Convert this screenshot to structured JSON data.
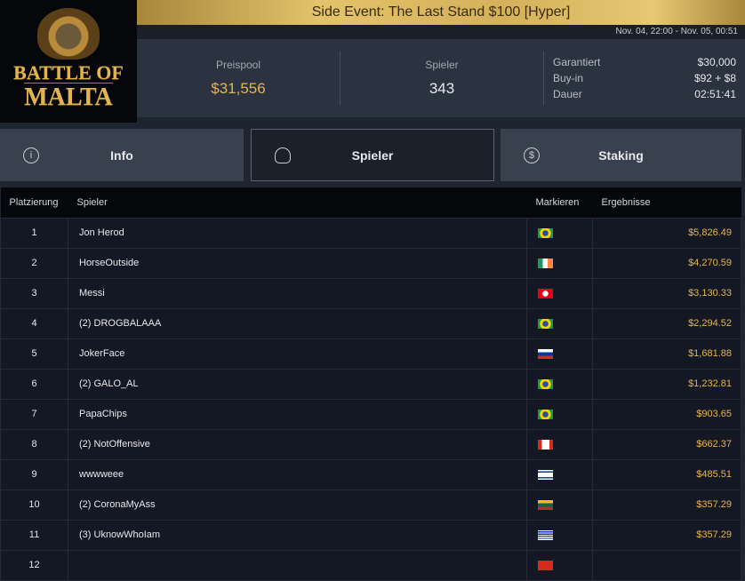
{
  "logo": {
    "text": "BATTLE OF MALTA"
  },
  "event": {
    "title": "Side Event: The Last Stand $100 [Hyper]",
    "dates": "Nov. 04, 22:00 - Nov. 05, 00:51"
  },
  "stats": {
    "prizepool_label": "Preispool",
    "prizepool": "$31,556",
    "players_label": "Spieler",
    "players": "343",
    "details": [
      {
        "k": "Garantiert",
        "v": "$30,000"
      },
      {
        "k": "Buy-in",
        "v": "$92 + $8"
      },
      {
        "k": "Dauer",
        "v": "02:51:41"
      }
    ]
  },
  "tabs": [
    {
      "label": "Info",
      "icon": "info-icon"
    },
    {
      "label": "Spieler",
      "icon": "user-icon",
      "active": true
    },
    {
      "label": "Staking",
      "icon": "dollar-icon"
    }
  ],
  "table": {
    "headers": [
      "Platzierung",
      "Spieler",
      "Markieren",
      "Ergebnisse"
    ],
    "rows": [
      {
        "rank": "1",
        "name": "Jon Herod",
        "flag": "brazil",
        "result": "$5,826.49"
      },
      {
        "rank": "2",
        "name": "HorseOutside",
        "flag": "ireland",
        "result": "$4,270.59"
      },
      {
        "rank": "3",
        "name": "Messi",
        "flag": "tunisia",
        "result": "$3,130.33"
      },
      {
        "rank": "4",
        "name": "(2) DROGBALAAA",
        "flag": "brazil",
        "result": "$2,294.52"
      },
      {
        "rank": "5",
        "name": "JokerFace",
        "flag": "russia",
        "result": "$1,681.88"
      },
      {
        "rank": "6",
        "name": "(2) GALO_AL",
        "flag": "brazil",
        "result": "$1,232.81"
      },
      {
        "rank": "7",
        "name": "PapaChips",
        "flag": "brazil",
        "result": "$903.65"
      },
      {
        "rank": "8",
        "name": "(2) NotOffensive",
        "flag": "canada",
        "result": "$662.37"
      },
      {
        "rank": "9",
        "name": "wwwweee",
        "flag": "israel",
        "result": "$485.51"
      },
      {
        "rank": "10",
        "name": "(2) CoronaMyAss",
        "flag": "lithuania",
        "result": "$357.29"
      },
      {
        "rank": "11",
        "name": "(3) UknowWhoIam",
        "flag": "uruguay",
        "result": "$357.29"
      },
      {
        "rank": "12",
        "name": "",
        "flag": "red",
        "result": ""
      }
    ]
  },
  "colors": {
    "accent": "#e5b54e",
    "title_bar": "#d4b15a"
  }
}
